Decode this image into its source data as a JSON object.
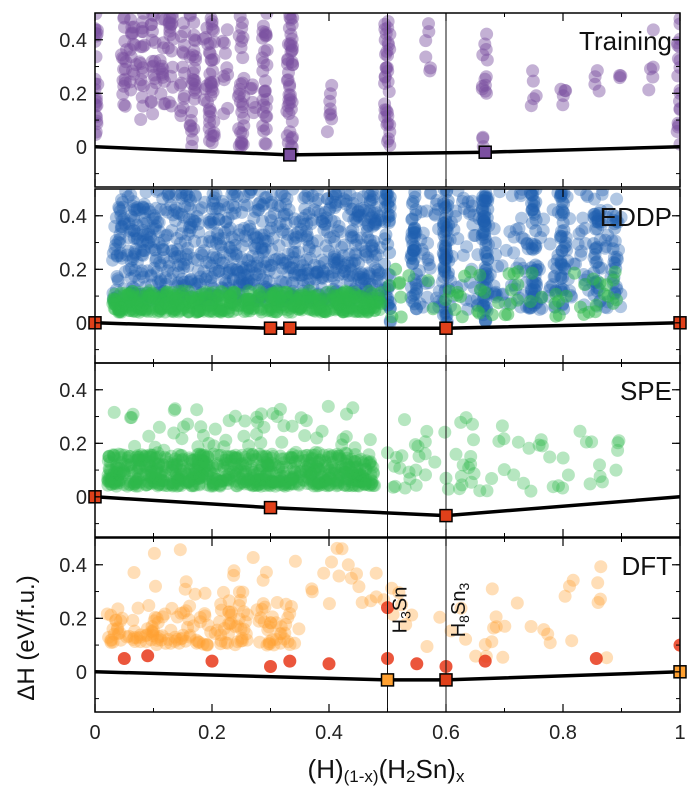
{
  "chart_data": {
    "type": "scatter",
    "xlabel": "(H)(1-x)(H2Sn)x",
    "xlabel_parts": {
      "a": "(H)",
      "a_sub": "(1-x)",
      "b": "(H",
      "b_sub": "2",
      "c": "Sn)",
      "c_sub": "x"
    },
    "ylabel": "ΔH (eV/f.u.)",
    "xlim": [
      0,
      1
    ],
    "xticks": [
      0,
      0.2,
      0.4,
      0.6,
      0.8,
      1
    ],
    "xtick_labels": [
      "0",
      "0.2",
      "0.4",
      "0.6",
      "0.8",
      "1"
    ],
    "ylim": [
      -0.15,
      0.5
    ],
    "yticks": [
      0,
      0.2,
      0.4
    ],
    "ytick_labels": [
      "0",
      "0.2",
      "0.4"
    ],
    "reference_lines_x": [
      0.5,
      0.6
    ],
    "annotations": [
      {
        "panel": 3,
        "x": 0.5,
        "base": "H",
        "sub1": "3",
        "mid": "Sn",
        "sub2": "",
        "label": "H3Sn"
      },
      {
        "panel": 3,
        "x": 0.6,
        "base": "H",
        "sub1": "8",
        "mid": "Sn",
        "sub2": "3",
        "label": "H8Sn3"
      }
    ],
    "panels": [
      {
        "name": "Training",
        "point_color": "#7b4fa0",
        "hull": [
          [
            0,
            0
          ],
          [
            0.333,
            -0.03
          ],
          [
            0.667,
            -0.02
          ],
          [
            1,
            0
          ]
        ],
        "stable_markers": [
          {
            "x": 0.333,
            "y": -0.03,
            "color": "#7b4fa0"
          },
          {
            "x": 0.667,
            "y": -0.02,
            "color": "#7b4fa0"
          }
        ],
        "columns": [
          {
            "x": 0.0,
            "ymin": 0.0,
            "ymax": 0.5,
            "n": 25
          },
          {
            "x": 0.05,
            "ymin": 0.15,
            "ymax": 0.5,
            "n": 18
          },
          {
            "x": 0.065,
            "ymin": 0.12,
            "ymax": 0.5,
            "n": 15
          },
          {
            "x": 0.08,
            "ymin": 0.1,
            "ymax": 0.5,
            "n": 18
          },
          {
            "x": 0.1,
            "ymin": 0.12,
            "ymax": 0.5,
            "n": 18
          },
          {
            "x": 0.115,
            "ymin": 0.15,
            "ymax": 0.5,
            "n": 15
          },
          {
            "x": 0.13,
            "ymin": 0.12,
            "ymax": 0.5,
            "n": 18
          },
          {
            "x": 0.15,
            "ymin": 0.1,
            "ymax": 0.5,
            "n": 15
          },
          {
            "x": 0.167,
            "ymin": 0.0,
            "ymax": 0.5,
            "n": 30
          },
          {
            "x": 0.19,
            "ymin": 0.15,
            "ymax": 0.45,
            "n": 8
          },
          {
            "x": 0.2,
            "ymin": 0.0,
            "ymax": 0.5,
            "n": 35
          },
          {
            "x": 0.222,
            "ymin": 0.1,
            "ymax": 0.45,
            "n": 10
          },
          {
            "x": 0.25,
            "ymin": 0.0,
            "ymax": 0.5,
            "n": 30
          },
          {
            "x": 0.27,
            "ymin": 0.1,
            "ymax": 0.25,
            "n": 6
          },
          {
            "x": 0.29,
            "ymin": 0.0,
            "ymax": 0.5,
            "n": 30
          },
          {
            "x": 0.333,
            "ymin": -0.03,
            "ymax": 0.5,
            "n": 45
          },
          {
            "x": 0.4,
            "ymin": 0.05,
            "ymax": 0.3,
            "n": 8
          },
          {
            "x": 0.5,
            "ymin": 0.0,
            "ymax": 0.5,
            "n": 35
          },
          {
            "x": 0.57,
            "ymin": 0.25,
            "ymax": 0.5,
            "n": 6
          },
          {
            "x": 0.667,
            "ymin": 0.2,
            "ymax": 0.45,
            "n": 12
          },
          {
            "x": 0.667,
            "ymin": -0.02,
            "ymax": 0.05,
            "n": 3
          },
          {
            "x": 0.75,
            "ymin": 0.15,
            "ymax": 0.3,
            "n": 5
          },
          {
            "x": 0.8,
            "ymin": 0.15,
            "ymax": 0.3,
            "n": 5
          },
          {
            "x": 0.857,
            "ymin": 0.15,
            "ymax": 0.3,
            "n": 4
          },
          {
            "x": 0.9,
            "ymin": 0.2,
            "ymax": 0.3,
            "n": 3
          },
          {
            "x": 0.95,
            "ymin": 0.2,
            "ymax": 0.5,
            "n": 5
          },
          {
            "x": 1.0,
            "ymin": 0.0,
            "ymax": 0.5,
            "n": 20
          }
        ]
      },
      {
        "name": "EDDP",
        "hull": [
          [
            0,
            0
          ],
          [
            0.3,
            -0.02
          ],
          [
            0.333,
            -0.02
          ],
          [
            0.6,
            -0.02
          ],
          [
            1,
            0
          ]
        ],
        "stable_markers": [
          {
            "x": 0.0,
            "y": 0.0,
            "color": "#e0401a"
          },
          {
            "x": 0.3,
            "y": -0.02,
            "color": "#e0401a"
          },
          {
            "x": 0.333,
            "y": -0.02,
            "color": "#e0401a"
          },
          {
            "x": 0.6,
            "y": -0.02,
            "color": "#e0401a"
          },
          {
            "x": 1.0,
            "y": 0.0,
            "color": "#e0401a"
          }
        ],
        "blue_band": {
          "xmin": 0.03,
          "xmax": 0.49,
          "ymin": 0.08,
          "ymax": 0.5,
          "n": 900
        },
        "blue_columns": [
          {
            "x": 0.5,
            "ymin": 0.0,
            "ymax": 0.5,
            "n": 40
          },
          {
            "x": 0.545,
            "ymin": 0.05,
            "ymax": 0.5,
            "n": 40
          },
          {
            "x": 0.6,
            "ymin": 0.0,
            "ymax": 0.5,
            "n": 50
          },
          {
            "x": 0.667,
            "ymin": 0.0,
            "ymax": 0.5,
            "n": 60
          },
          {
            "x": 0.75,
            "ymin": 0.05,
            "ymax": 0.5,
            "n": 40
          },
          {
            "x": 0.8,
            "ymin": 0.05,
            "ymax": 0.5,
            "n": 35
          },
          {
            "x": 0.857,
            "ymin": 0.05,
            "ymax": 0.45,
            "n": 25
          },
          {
            "x": 0.89,
            "ymin": 0.1,
            "ymax": 0.4,
            "n": 15
          }
        ],
        "blue_scatter": {
          "xmin": 0.54,
          "xmax": 0.9,
          "ymin": 0.05,
          "ymax": 0.5,
          "n": 250
        },
        "green_band": {
          "xmin": 0.03,
          "xmax": 0.49,
          "ymin": 0.04,
          "ymax": 0.12,
          "n": 500
        },
        "green_scatter": {
          "xmin": 0.5,
          "xmax": 0.9,
          "ymin": 0.02,
          "ymax": 0.2,
          "n": 60
        }
      },
      {
        "name": "SPE",
        "point_color": "#2db84a",
        "hull": [
          [
            0,
            0
          ],
          [
            0.3,
            -0.04
          ],
          [
            0.6,
            -0.07
          ],
          [
            1,
            0
          ]
        ],
        "stable_markers": [
          {
            "x": 0.0,
            "y": 0.0,
            "color": "#e0401a"
          },
          {
            "x": 0.3,
            "y": -0.04,
            "color": "#e0401a"
          },
          {
            "x": 0.6,
            "y": -0.07,
            "color": "#e0401a"
          }
        ],
        "dense_band": {
          "xmin": 0.02,
          "xmax": 0.48,
          "ymin": 0.04,
          "ymax": 0.16,
          "n": 700
        },
        "upper_scatter": {
          "xmin": 0.02,
          "xmax": 0.48,
          "ymin": 0.16,
          "ymax": 0.34,
          "n": 60
        },
        "right_scatter": {
          "xmin": 0.5,
          "xmax": 0.9,
          "ymin": 0.02,
          "ymax": 0.3,
          "n": 70
        }
      },
      {
        "name": "DFT",
        "point_color": "#ffa030",
        "hull": [
          [
            0,
            0
          ],
          [
            0.5,
            -0.03
          ],
          [
            0.6,
            -0.03
          ],
          [
            1,
            0
          ]
        ],
        "stable_markers": [
          {
            "x": 0.5,
            "y": -0.03,
            "color": "#ffa030"
          },
          {
            "x": 0.6,
            "y": -0.03,
            "color": "#e0401a"
          },
          {
            "x": 1.0,
            "y": 0.0,
            "color": "#ffa030"
          }
        ],
        "dense_band": {
          "xmin": 0.02,
          "xmax": 0.35,
          "ymin": 0.1,
          "ymax": 0.25,
          "n": 160
        },
        "upper_scatter": {
          "xmin": 0.05,
          "xmax": 0.5,
          "ymin": 0.25,
          "ymax": 0.47,
          "n": 40
        },
        "right_scatter": {
          "xmin": 0.5,
          "xmax": 0.9,
          "ymin": 0.05,
          "ymax": 0.4,
          "n": 35
        },
        "red_points": [
          [
            0.05,
            0.05
          ],
          [
            0.09,
            0.06
          ],
          [
            0.2,
            0.04
          ],
          [
            0.3,
            0.02
          ],
          [
            0.333,
            0.04
          ],
          [
            0.4,
            0.03
          ],
          [
            0.5,
            0.24
          ],
          [
            0.5,
            0.05
          ],
          [
            0.55,
            0.03
          ],
          [
            0.6,
            0.02
          ],
          [
            0.667,
            0.04
          ],
          [
            0.857,
            0.05
          ],
          [
            1.0,
            0.1
          ]
        ]
      }
    ]
  }
}
